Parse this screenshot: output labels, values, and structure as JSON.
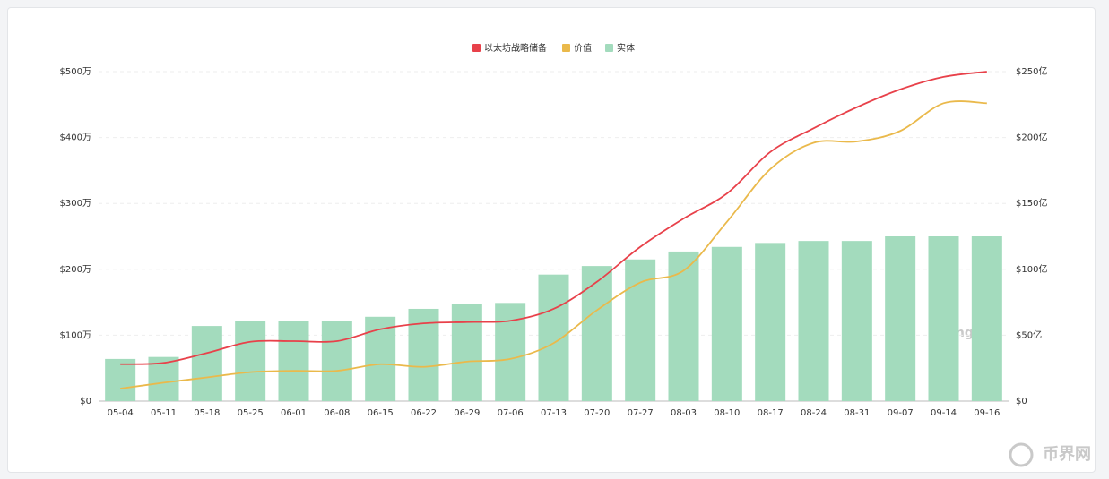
{
  "chart_data": {
    "type": "bar-line",
    "categories": [
      "05-04",
      "05-11",
      "05-18",
      "05-25",
      "06-01",
      "06-08",
      "06-15",
      "06-22",
      "06-29",
      "07-06",
      "07-13",
      "07-20",
      "07-27",
      "08-03",
      "08-10",
      "08-17",
      "08-24",
      "08-31",
      "09-07",
      "09-14",
      "09-16"
    ],
    "series": [
      {
        "name": "以太坊战略储备",
        "type": "line",
        "color": "#e8414a",
        "axis": "y",
        "values": [
          56,
          58,
          73,
          90,
          91,
          91,
          109,
          118,
          120,
          122,
          140,
          181,
          234,
          277,
          315,
          378,
          414,
          446,
          473,
          492,
          500
        ]
      },
      {
        "name": "价值",
        "type": "line",
        "color": "#eab94b",
        "axis": "y2",
        "values": [
          9.5,
          14,
          18,
          22,
          23,
          23,
          28,
          26,
          30,
          32,
          44,
          69,
          90,
          99,
          136,
          176,
          196,
          197,
          205,
          226,
          226
        ]
      },
      {
        "name": "实体",
        "type": "bar",
        "color": "#a3dbbd",
        "axis": "y",
        "values": [
          64,
          67,
          114,
          121,
          121,
          121,
          128,
          140,
          147,
          149,
          192,
          205,
          215,
          227,
          234,
          240,
          243,
          243,
          250,
          250,
          250
        ]
      }
    ],
    "ylim": [
      0,
      500
    ],
    "yticks": [
      {
        "value": 0,
        "label": "$0"
      },
      {
        "value": 100,
        "label": "$100万"
      },
      {
        "value": 200,
        "label": "$200万"
      },
      {
        "value": 300,
        "label": "$300万"
      },
      {
        "value": 400,
        "label": "$400万"
      },
      {
        "value": 500,
        "label": "$500万"
      }
    ],
    "y2lim": [
      0,
      250
    ],
    "y2ticks": [
      {
        "value": 0,
        "label": "$0"
      },
      {
        "value": 50,
        "label": "$50亿"
      },
      {
        "value": 100,
        "label": "$100亿"
      },
      {
        "value": 150,
        "label": "$150亿"
      },
      {
        "value": 200,
        "label": "$200亿"
      },
      {
        "value": 250,
        "label": "$250亿"
      }
    ],
    "grid": true,
    "legend": "top",
    "watermarks": [
      "coinglass",
      "币界网"
    ]
  }
}
